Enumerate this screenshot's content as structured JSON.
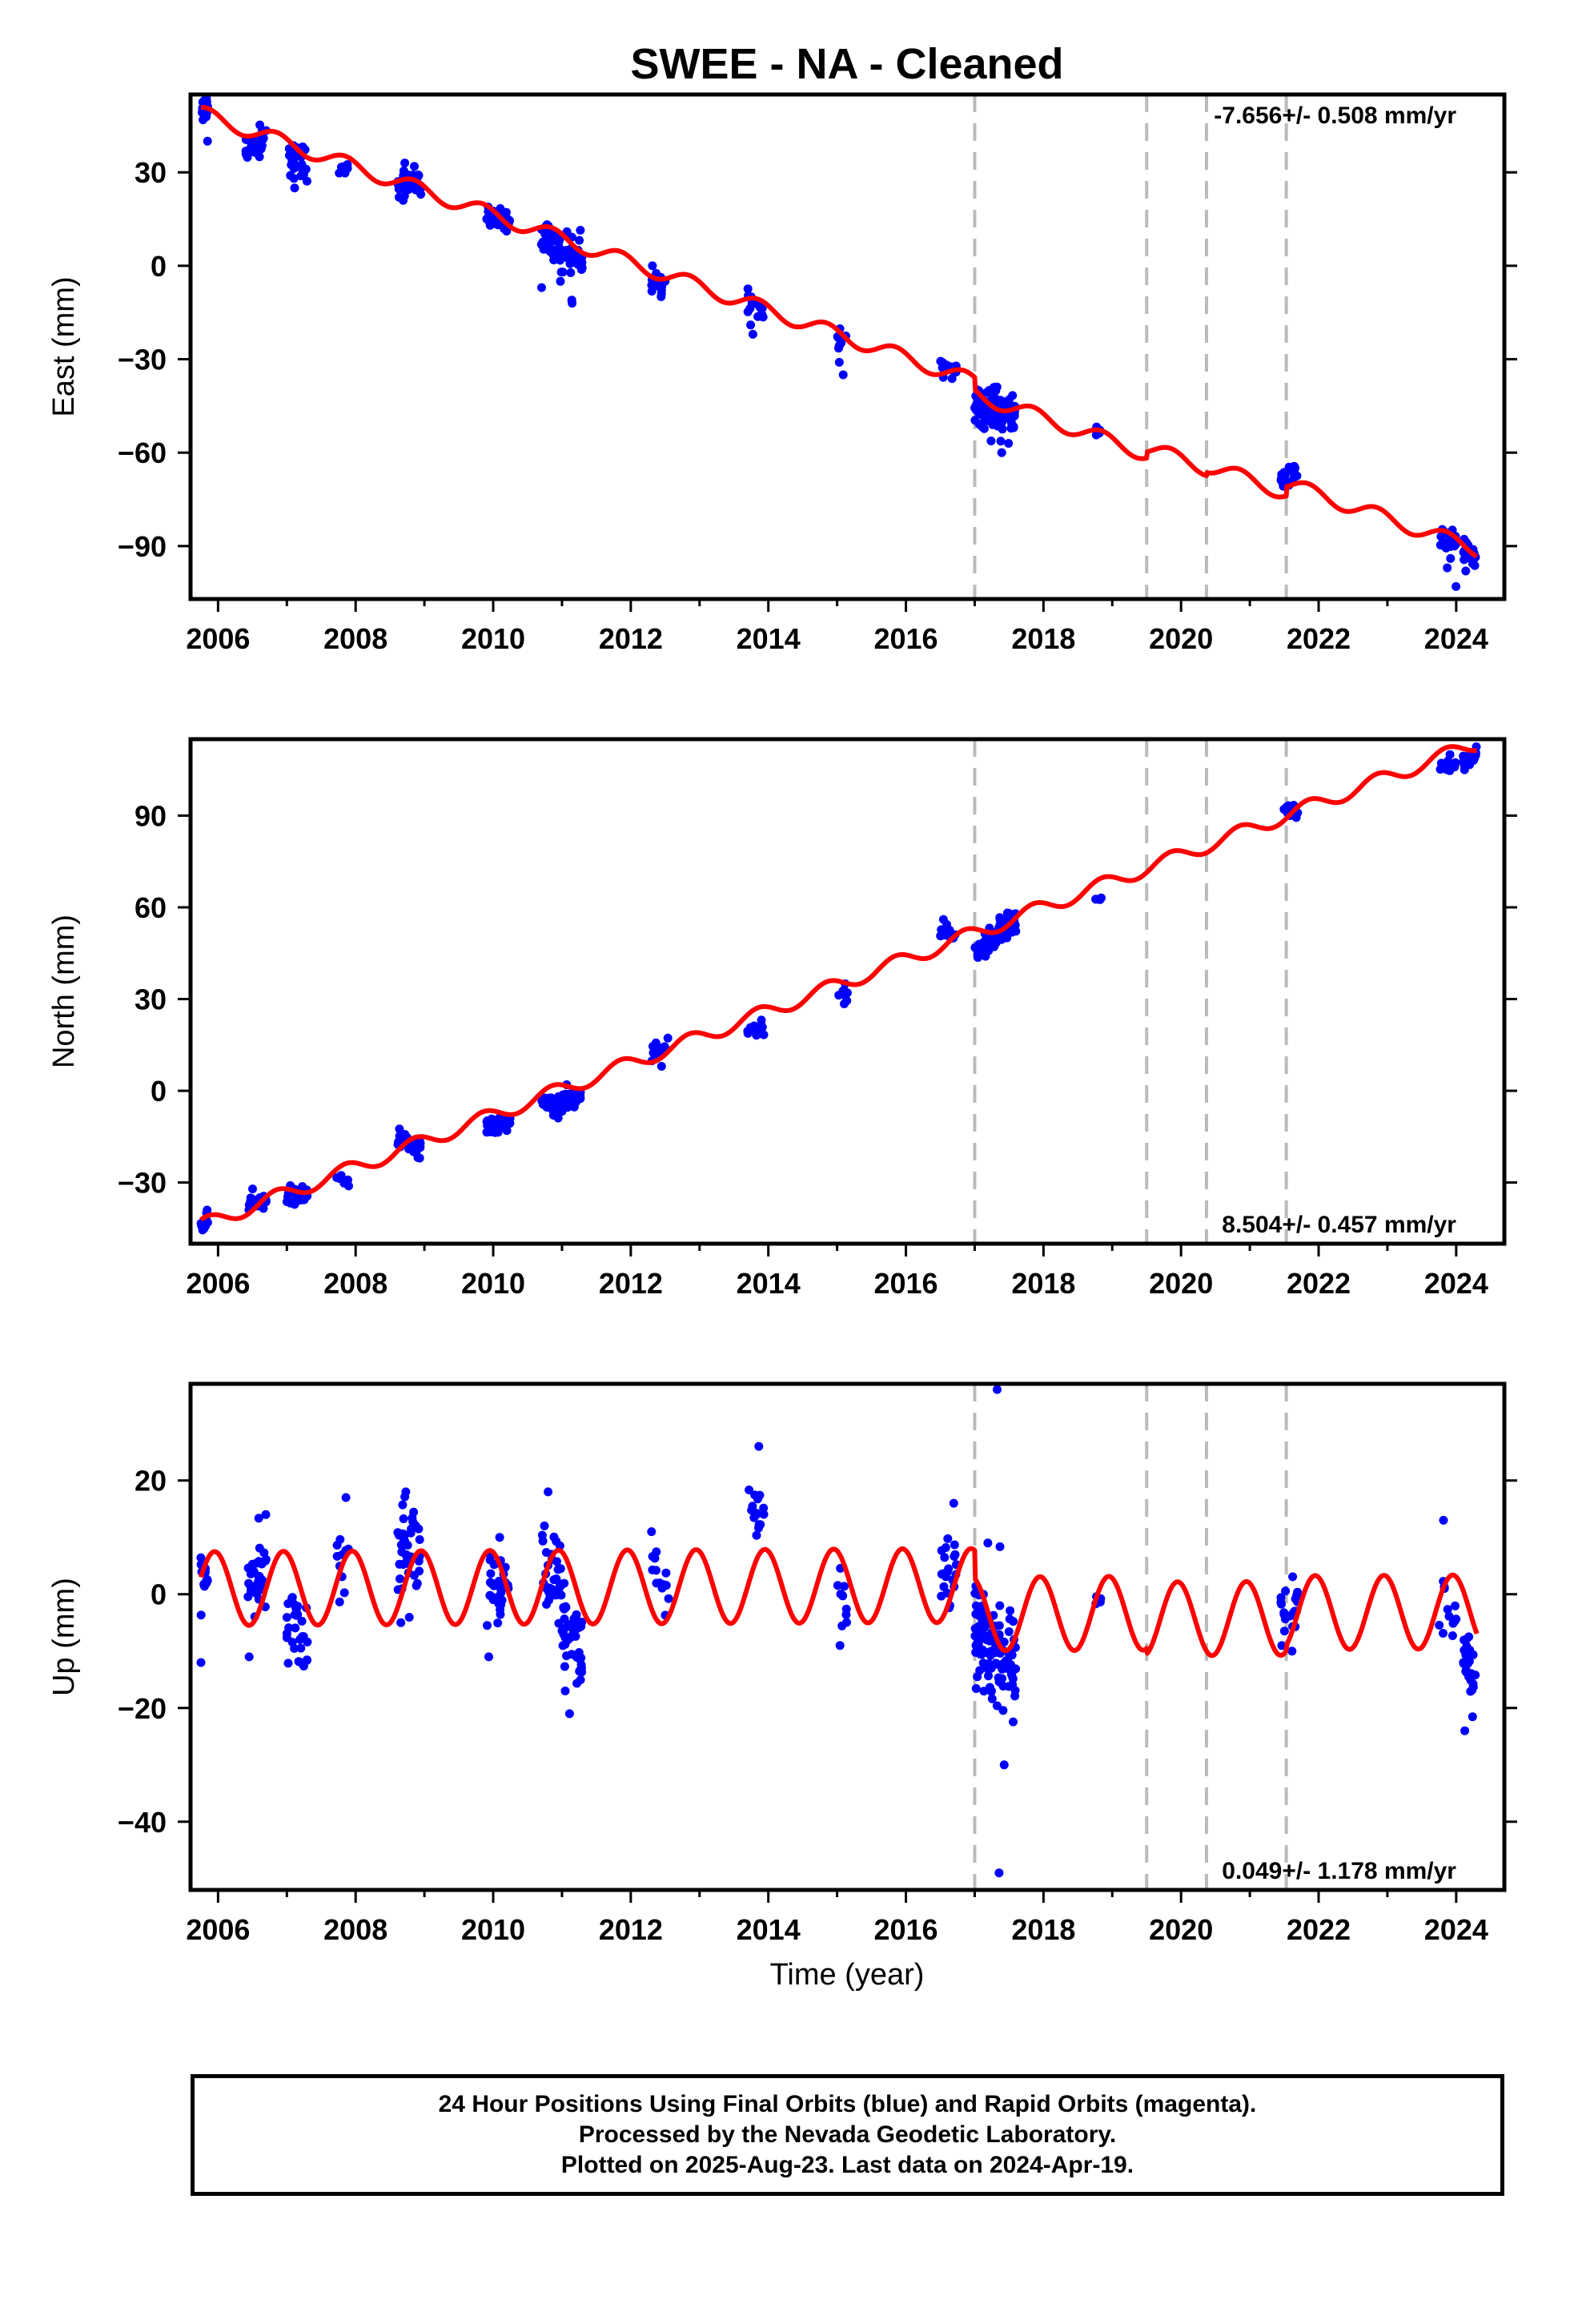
{
  "chart_data": {
    "type": "scatter",
    "title": "SWEE  - NA - Cleaned",
    "xlabel": "Time (year)",
    "xlim": [
      2005.6,
      2024.7
    ],
    "x_ticks": [
      2006,
      2008,
      2010,
      2012,
      2014,
      2016,
      2018,
      2020,
      2022,
      2024
    ],
    "x_tick_labels": [
      "2006",
      "2008",
      "2010",
      "2012",
      "2014",
      "2016",
      "2018",
      "2020",
      "2022",
      "2024"
    ],
    "event_lines": [
      2017.0,
      2019.5,
      2020.37,
      2021.53
    ],
    "colors": {
      "data": "#0000ff",
      "model": "#ff0000",
      "events": "#bbbbbb",
      "axes": "#000000"
    },
    "panels": [
      {
        "name": "east",
        "ylabel": "East (mm)",
        "ylim": [
          -107,
          55
        ],
        "y_ticks": [
          30,
          0,
          -30,
          -60,
          -90
        ],
        "y_tick_labels": [
          "30",
          "0",
          "−30",
          "−60",
          "−90"
        ],
        "rate_label": "-7.656+/- 0.508 mm/yr",
        "rate_position": "top-right",
        "model": {
          "offset_2006": 47,
          "rate": -7.656,
          "amplitude": 2.4,
          "phase_year": 2005.6,
          "steps": [
            {
              "year": 2017.0,
              "shift": -4
            },
            {
              "year": 2019.5,
              "shift": 2
            },
            {
              "year": 2020.37,
              "shift": 1
            },
            {
              "year": 2021.53,
              "shift": 3
            }
          ]
        },
        "clusters": [
          {
            "t": [
              2005.75,
              2005.85
            ],
            "n": 12,
            "y": [
              49,
              52
            ],
            "spread": 2.2,
            "out": [
              40,
              53
            ]
          },
          {
            "t": [
              2006.4,
              2006.7
            ],
            "n": 30,
            "y": [
              38,
              42
            ],
            "spread": 2.2,
            "out": [
              35
            ]
          },
          {
            "t": [
              2007.0,
              2007.3
            ],
            "n": 30,
            "y": [
              35,
              33
            ],
            "spread": 2.6,
            "out": [
              25,
              29
            ]
          },
          {
            "t": [
              2007.7,
              2007.9
            ],
            "n": 8,
            "y": [
              31,
              30
            ],
            "spread": 1.6,
            "out": []
          },
          {
            "t": [
              2008.6,
              2008.95
            ],
            "n": 40,
            "y": [
              27,
              26
            ],
            "spread": 2.4,
            "out": [
              21,
              22
            ]
          },
          {
            "t": [
              2009.9,
              2010.25
            ],
            "n": 40,
            "y": [
              16,
              14
            ],
            "spread": 1.5,
            "out": [
              13
            ]
          },
          {
            "t": [
              2010.7,
              2011.0
            ],
            "n": 35,
            "y": [
              10,
              5
            ],
            "spread": 3.0,
            "out": [
              -2,
              -5,
              -7
            ]
          },
          {
            "t": [
              2011.0,
              2011.3
            ],
            "n": 35,
            "y": [
              6,
              2
            ],
            "spread": 3.0,
            "out": [
              -11,
              -12,
              -2
            ]
          },
          {
            "t": [
              2012.3,
              2012.55
            ],
            "n": 15,
            "y": [
              -5,
              -7
            ],
            "spread": 1.8,
            "out": [
              0,
              -9
            ]
          },
          {
            "t": [
              2013.7,
              2013.95
            ],
            "n": 15,
            "y": [
              -11,
              -13
            ],
            "spread": 1.8,
            "out": [
              -19,
              -22
            ]
          },
          {
            "t": [
              2015.0,
              2015.15
            ],
            "n": 10,
            "y": [
              -24,
              -25
            ],
            "spread": 1.8,
            "out": [
              -31,
              -35
            ]
          },
          {
            "t": [
              2016.5,
              2016.75
            ],
            "n": 15,
            "y": [
              -32,
              -33
            ],
            "spread": 1.5,
            "out": []
          },
          {
            "t": [
              2017.0,
              2017.6
            ],
            "n": 110,
            "y": [
              -45,
              -46
            ],
            "spread": 3.2,
            "out": [
              -60,
              -57,
              -52
            ]
          },
          {
            "t": [
              2018.75,
              2018.85
            ],
            "n": 4,
            "y": [
              -53,
              -53
            ],
            "spread": 1.0,
            "out": []
          },
          {
            "t": [
              2021.45,
              2021.7
            ],
            "n": 22,
            "y": [
              -68,
              -67
            ],
            "spread": 1.6,
            "out": []
          },
          {
            "t": [
              2023.75,
              2024.0
            ],
            "n": 18,
            "y": [
              -88,
              -89
            ],
            "spread": 2.0,
            "out": [
              -94,
              -97,
              -103
            ]
          },
          {
            "t": [
              2024.1,
              2024.3
            ],
            "n": 22,
            "y": [
              -91,
              -94
            ],
            "spread": 2.0,
            "out": [
              -98
            ]
          }
        ]
      },
      {
        "name": "north",
        "ylabel": "North (mm)",
        "ylim": [
          -50,
          115
        ],
        "y_ticks": [
          90,
          60,
          30,
          0,
          -30
        ],
        "y_tick_labels": [
          "90",
          "60",
          "30",
          "0",
          "−30"
        ],
        "rate_label": "8.504+/- 0.457 mm/yr",
        "rate_position": "bottom-right",
        "model": {
          "offset_2006": -42,
          "rate": 8.504,
          "amplitude": 2.4,
          "phase_year": 2005.6,
          "steps": [
            {
              "year": 2017.0,
              "shift": 0
            },
            {
              "year": 2019.5,
              "shift": 0
            },
            {
              "year": 2020.37,
              "shift": 0
            },
            {
              "year": 2021.53,
              "shift": 0
            }
          ]
        },
        "clusters": [
          {
            "t": [
              2005.75,
              2005.85
            ],
            "n": 12,
            "y": [
              -44,
              -43
            ],
            "spread": 1.6,
            "out": [
              -40,
              -39
            ]
          },
          {
            "t": [
              2006.4,
              2006.7
            ],
            "n": 25,
            "y": [
              -37,
              -36
            ],
            "spread": 1.4,
            "out": []
          },
          {
            "t": [
              2007.0,
              2007.3
            ],
            "n": 25,
            "y": [
              -36,
              -34
            ],
            "spread": 2.0,
            "out": [
              -31
            ]
          },
          {
            "t": [
              2007.7,
              2007.9
            ],
            "n": 8,
            "y": [
              -29,
              -30
            ],
            "spread": 1.2,
            "out": []
          },
          {
            "t": [
              2008.6,
              2008.95
            ],
            "n": 30,
            "y": [
              -17,
              -18
            ],
            "spread": 1.5,
            "out": [
              -22
            ]
          },
          {
            "t": [
              2009.9,
              2010.25
            ],
            "n": 35,
            "y": [
              -11,
              -10
            ],
            "spread": 1.2,
            "out": [
              -13
            ]
          },
          {
            "t": [
              2010.7,
              2011.0
            ],
            "n": 30,
            "y": [
              -3,
              -5
            ],
            "spread": 1.5,
            "out": [
              -8
            ]
          },
          {
            "t": [
              2011.0,
              2011.3
            ],
            "n": 30,
            "y": [
              -4,
              -1
            ],
            "spread": 1.5,
            "out": [
              2
            ]
          },
          {
            "t": [
              2012.3,
              2012.55
            ],
            "n": 15,
            "y": [
              12,
              15
            ],
            "spread": 1.6,
            "out": [
              8
            ]
          },
          {
            "t": [
              2013.7,
              2013.95
            ],
            "n": 15,
            "y": [
              21,
              19
            ],
            "spread": 1.4,
            "out": []
          },
          {
            "t": [
              2015.0,
              2015.15
            ],
            "n": 10,
            "y": [
              31,
              32
            ],
            "spread": 1.4,
            "out": [
              35
            ]
          },
          {
            "t": [
              2016.5,
              2016.75
            ],
            "n": 15,
            "y": [
              52,
              50
            ],
            "spread": 1.4,
            "out": []
          },
          {
            "t": [
              2017.0,
              2017.6
            ],
            "n": 110,
            "y": [
              46,
              56
            ],
            "spread": 1.8,
            "out": [
              44
            ]
          },
          {
            "t": [
              2018.75,
              2018.85
            ],
            "n": 4,
            "y": [
              62,
              62
            ],
            "spread": 0.8,
            "out": []
          },
          {
            "t": [
              2021.45,
              2021.7
            ],
            "n": 22,
            "y": [
              92,
              91
            ],
            "spread": 1.0,
            "out": []
          },
          {
            "t": [
              2023.75,
              2024.0
            ],
            "n": 18,
            "y": [
              106,
              107
            ],
            "spread": 1.2,
            "out": []
          },
          {
            "t": [
              2024.1,
              2024.3
            ],
            "n": 22,
            "y": [
              108,
              110
            ],
            "spread": 1.4,
            "out": [
              105
            ]
          }
        ]
      },
      {
        "name": "up",
        "ylabel": "Up (mm)",
        "ylim": [
          -52,
          37
        ],
        "y_ticks": [
          20,
          0,
          -20,
          -40
        ],
        "y_tick_labels": [
          "20",
          "0",
          "−20",
          "−40"
        ],
        "rate_label": "0.049+/- 1.178 mm/yr",
        "rate_position": "bottom-right",
        "model": {
          "offset_2006": 1,
          "rate": 0.049,
          "amplitude": 6.5,
          "phase_year": 2005.7,
          "steps": [
            {
              "year": 2017.0,
              "shift": -5
            },
            {
              "year": 2019.5,
              "shift": -1
            },
            {
              "year": 2020.37,
              "shift": 0
            },
            {
              "year": 2021.53,
              "shift": 1
            }
          ]
        },
        "clusters": [
          {
            "t": [
              2005.75,
              2005.85
            ],
            "n": 12,
            "y": [
              2,
              1
            ],
            "spread": 3.5,
            "out": [
              -12
            ]
          },
          {
            "t": [
              2006.4,
              2006.7
            ],
            "n": 30,
            "y": [
              0,
              6
            ],
            "spread": 4.0,
            "out": [
              14,
              -11
            ]
          },
          {
            "t": [
              2007.0,
              2007.3
            ],
            "n": 30,
            "y": [
              -4,
              -7
            ],
            "spread": 3.2,
            "out": [
              -12
            ]
          },
          {
            "t": [
              2007.7,
              2007.9
            ],
            "n": 10,
            "y": [
              6,
              4
            ],
            "spread": 3.5,
            "out": [
              17
            ]
          },
          {
            "t": [
              2008.6,
              2008.95
            ],
            "n": 45,
            "y": [
              9,
              5
            ],
            "spread": 4.0,
            "out": [
              18,
              -5
            ]
          },
          {
            "t": [
              2009.9,
              2010.25
            ],
            "n": 30,
            "y": [
              1,
              -2
            ],
            "spread": 3.5,
            "out": [
              10,
              -11
            ]
          },
          {
            "t": [
              2010.7,
              2011.0
            ],
            "n": 35,
            "y": [
              8,
              0
            ],
            "spread": 4.0,
            "out": [
              18
            ]
          },
          {
            "t": [
              2011.0,
              2011.3
            ],
            "n": 45,
            "y": [
              -5,
              -10
            ],
            "spread": 3.5,
            "out": [
              -17,
              -21
            ]
          },
          {
            "t": [
              2012.3,
              2012.55
            ],
            "n": 15,
            "y": [
              5,
              0
            ],
            "spread": 3.0,
            "out": [
              11
            ]
          },
          {
            "t": [
              2013.7,
              2013.95
            ],
            "n": 15,
            "y": [
              15,
              13
            ],
            "spread": 2.0,
            "out": [
              26
            ]
          },
          {
            "t": [
              2015.0,
              2015.15
            ],
            "n": 10,
            "y": [
              2,
              -3
            ],
            "spread": 3.0,
            "out": [
              -9
            ]
          },
          {
            "t": [
              2016.5,
              2016.75
            ],
            "n": 20,
            "y": [
              7,
              3
            ],
            "spread": 3.0,
            "out": [
              16,
              -2
            ]
          },
          {
            "t": [
              2017.0,
              2017.6
            ],
            "n": 120,
            "y": [
              -8,
              -10
            ],
            "spread": 5.0,
            "out": [
              36,
              -49,
              -30,
              9
            ]
          },
          {
            "t": [
              2018.75,
              2018.85
            ],
            "n": 4,
            "y": [
              1,
              0
            ],
            "spread": 1.5,
            "out": []
          },
          {
            "t": [
              2021.45,
              2021.7
            ],
            "n": 25,
            "y": [
              -3,
              -2
            ],
            "spread": 3.0,
            "out": [
              -10
            ]
          },
          {
            "t": [
              2023.75,
              2024.0
            ],
            "n": 12,
            "y": [
              -3,
              -6
            ],
            "spread": 3.0,
            "out": [
              13
            ]
          },
          {
            "t": [
              2024.1,
              2024.3
            ],
            "n": 25,
            "y": [
              -10,
              -18
            ],
            "spread": 3.5,
            "out": [
              -24
            ]
          }
        ]
      }
    ]
  },
  "footer": {
    "line1": "24 Hour Positions Using Final Orbits (blue) and Rapid Orbits (magenta).",
    "line2": "Processed by the Nevada Geodetic Laboratory.",
    "line3": "Plotted on 2025-Aug-23. Last data on 2024-Apr-19."
  }
}
